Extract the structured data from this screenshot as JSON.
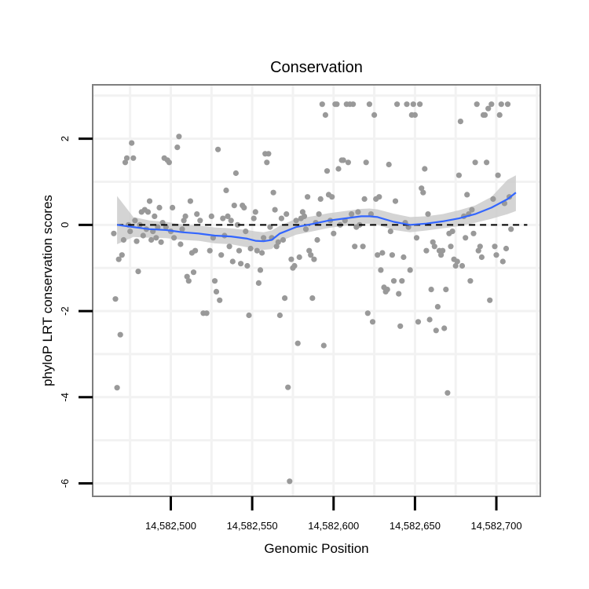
{
  "chart_data": {
    "type": "scatter",
    "title": "Conservation",
    "xlabel": "Genomic Position",
    "ylabel": "phyloP LRT conservation scores",
    "xlim": [
      14582452,
      14582727
    ],
    "ylim": [
      -6.3,
      3.25
    ],
    "x_ticks": [
      14582500,
      14582550,
      14582600,
      14582650,
      14582700
    ],
    "x_tick_labels": [
      "14,582,500",
      "14,582,550",
      "14,582,600",
      "14,582,650",
      "14,582,700"
    ],
    "y_ticks": [
      2,
      0,
      -2,
      -4,
      -6
    ],
    "y_tick_labels": [
      "2",
      "0",
      "-2",
      "-4",
      "-6"
    ],
    "reference_line_y": 0,
    "grid": true,
    "legend": "none",
    "colors": {
      "points": "#999999",
      "smooth_line": "#3366ff",
      "confidence_band": "#cccccc",
      "grid": "#f2f2f2",
      "panel_border": "#7f7f7f",
      "reference_line": "#000000"
    },
    "points": [
      [
        14582465,
        -0.2
      ],
      [
        14582466,
        -1.72
      ],
      [
        14582467,
        -3.78
      ],
      [
        14582468,
        -0.8
      ],
      [
        14582469,
        -2.55
      ],
      [
        14582470,
        -0.7
      ],
      [
        14582471,
        -0.35
      ],
      [
        14582472,
        1.45
      ],
      [
        14582473,
        1.55
      ],
      [
        14582474,
        0.0
      ],
      [
        14582475,
        -0.15
      ],
      [
        14582476,
        1.9
      ],
      [
        14582477,
        1.55
      ],
      [
        14582478,
        0.1
      ],
      [
        14582479,
        -0.38
      ],
      [
        14582480,
        -1.08
      ],
      [
        14582481,
        0.0
      ],
      [
        14582482,
        0.3
      ],
      [
        14582483,
        -0.25
      ],
      [
        14582484,
        0.35
      ],
      [
        14582485,
        -0.1
      ],
      [
        14582486,
        0.3
      ],
      [
        14582487,
        0.55
      ],
      [
        14582488,
        -0.35
      ],
      [
        14582489,
        -0.15
      ],
      [
        14582490,
        0.2
      ],
      [
        14582491,
        -0.3
      ],
      [
        14582492,
        -0.05
      ],
      [
        14582493,
        0.4
      ],
      [
        14582494,
        -0.4
      ],
      [
        14582495,
        0.05
      ],
      [
        14582496,
        1.55
      ],
      [
        14582497,
        -0.05
      ],
      [
        14582498,
        1.5
      ],
      [
        14582499,
        1.45
      ],
      [
        14582500,
        -0.15
      ],
      [
        14582501,
        0.4
      ],
      [
        14582502,
        -0.3
      ],
      [
        14582504,
        1.8
      ],
      [
        14582505,
        2.05
      ],
      [
        14582506,
        -0.45
      ],
      [
        14582507,
        -0.1
      ],
      [
        14582508,
        0.1
      ],
      [
        14582509,
        0.2
      ],
      [
        14582510,
        -1.2
      ],
      [
        14582511,
        -1.3
      ],
      [
        14582512,
        0.55
      ],
      [
        14582513,
        -0.65
      ],
      [
        14582514,
        -1.1
      ],
      [
        14582515,
        -0.6
      ],
      [
        14582516,
        0.25
      ],
      [
        14582518,
        0.1
      ],
      [
        14582520,
        -2.05
      ],
      [
        14582522,
        -2.05
      ],
      [
        14582524,
        -0.6
      ],
      [
        14582525,
        0.2
      ],
      [
        14582526,
        -0.3
      ],
      [
        14582527,
        -1.3
      ],
      [
        14582528,
        -1.55
      ],
      [
        14582529,
        1.75
      ],
      [
        14582530,
        -1.75
      ],
      [
        14582531,
        -0.7
      ],
      [
        14582532,
        0.15
      ],
      [
        14582533,
        -0.25
      ],
      [
        14582534,
        0.8
      ],
      [
        14582535,
        0.2
      ],
      [
        14582536,
        -0.5
      ],
      [
        14582537,
        0.1
      ],
      [
        14582538,
        -0.85
      ],
      [
        14582539,
        0.45
      ],
      [
        14582540,
        1.2
      ],
      [
        14582541,
        0.0
      ],
      [
        14582542,
        -0.6
      ],
      [
        14582543,
        -0.9
      ],
      [
        14582544,
        0.45
      ],
      [
        14582545,
        0.4
      ],
      [
        14582546,
        -0.15
      ],
      [
        14582547,
        -0.95
      ],
      [
        14582548,
        -2.1
      ],
      [
        14582549,
        -0.55
      ],
      [
        14582551,
        0.15
      ],
      [
        14582552,
        0.3
      ],
      [
        14582553,
        -0.6
      ],
      [
        14582554,
        -1.35
      ],
      [
        14582555,
        -1.05
      ],
      [
        14582556,
        -0.65
      ],
      [
        14582557,
        -0.3
      ],
      [
        14582558,
        1.65
      ],
      [
        14582559,
        1.45
      ],
      [
        14582560,
        1.65
      ],
      [
        14582561,
        -0.05
      ],
      [
        14582562,
        -0.3
      ],
      [
        14582563,
        0.75
      ],
      [
        14582564,
        0.35
      ],
      [
        14582565,
        -0.5
      ],
      [
        14582566,
        -0.4
      ],
      [
        14582567,
        -2.1
      ],
      [
        14582568,
        0.15
      ],
      [
        14582569,
        -0.35
      ],
      [
        14582570,
        -1.7
      ],
      [
        14582571,
        0.25
      ],
      [
        14582572,
        -3.77
      ],
      [
        14582573,
        -5.95
      ],
      [
        14582574,
        -0.8
      ],
      [
        14582575,
        -1.0
      ],
      [
        14582576,
        -0.95
      ],
      [
        14582577,
        0.1
      ],
      [
        14582578,
        -2.75
      ],
      [
        14582579,
        -0.75
      ],
      [
        14582580,
        0.15
      ],
      [
        14582581,
        0.3
      ],
      [
        14582582,
        0.2
      ],
      [
        14582583,
        -0.1
      ],
      [
        14582584,
        0.65
      ],
      [
        14582585,
        -0.6
      ],
      [
        14582586,
        -0.7
      ],
      [
        14582587,
        -1.7
      ],
      [
        14582588,
        -0.8
      ],
      [
        14582589,
        0.05
      ],
      [
        14582590,
        -0.35
      ],
      [
        14582591,
        0.25
      ],
      [
        14582592,
        0.6
      ],
      [
        14582593,
        2.8
      ],
      [
        14582594,
        -2.8
      ],
      [
        14582595,
        2.55
      ],
      [
        14582596,
        1.25
      ],
      [
        14582597,
        0.7
      ],
      [
        14582598,
        0.1
      ],
      [
        14582599,
        0.65
      ],
      [
        14582600,
        -0.2
      ],
      [
        14582601,
        2.8
      ],
      [
        14582602,
        2.8
      ],
      [
        14582603,
        1.3
      ],
      [
        14582604,
        0.0
      ],
      [
        14582605,
        1.5
      ],
      [
        14582606,
        1.5
      ],
      [
        14582607,
        0.1
      ],
      [
        14582608,
        2.8
      ],
      [
        14582609,
        1.45
      ],
      [
        14582610,
        2.8
      ],
      [
        14582611,
        0.25
      ],
      [
        14582612,
        2.8
      ],
      [
        14582613,
        -0.5
      ],
      [
        14582614,
        -0.05
      ],
      [
        14582615,
        0.3
      ],
      [
        14582616,
        0.0
      ],
      [
        14582618,
        -0.5
      ],
      [
        14582619,
        0.6
      ],
      [
        14582620,
        1.45
      ],
      [
        14582621,
        -2.05
      ],
      [
        14582622,
        2.8
      ],
      [
        14582623,
        0.25
      ],
      [
        14582624,
        -2.25
      ],
      [
        14582625,
        2.55
      ],
      [
        14582626,
        0.6
      ],
      [
        14582627,
        -0.7
      ],
      [
        14582628,
        0.65
      ],
      [
        14582629,
        -1.05
      ],
      [
        14582630,
        -0.65
      ],
      [
        14582631,
        -1.45
      ],
      [
        14582632,
        -1.55
      ],
      [
        14582633,
        -1.5
      ],
      [
        14582634,
        1.4
      ],
      [
        14582635,
        -0.15
      ],
      [
        14582636,
        -0.7
      ],
      [
        14582637,
        -1.3
      ],
      [
        14582638,
        0.55
      ],
      [
        14582639,
        2.8
      ],
      [
        14582640,
        -1.6
      ],
      [
        14582641,
        -2.35
      ],
      [
        14582642,
        -1.3
      ],
      [
        14582643,
        -0.75
      ],
      [
        14582644,
        0.05
      ],
      [
        14582645,
        2.8
      ],
      [
        14582646,
        -0.05
      ],
      [
        14582647,
        -1.05
      ],
      [
        14582648,
        2.55
      ],
      [
        14582649,
        2.8
      ],
      [
        14582650,
        2.55
      ],
      [
        14582651,
        -0.3
      ],
      [
        14582652,
        -2.25
      ],
      [
        14582653,
        2.8
      ],
      [
        14582654,
        0.85
      ],
      [
        14582655,
        0.75
      ],
      [
        14582656,
        1.3
      ],
      [
        14582657,
        -0.6
      ],
      [
        14582658,
        0.25
      ],
      [
        14582659,
        -2.2
      ],
      [
        14582660,
        -1.5
      ],
      [
        14582661,
        -0.4
      ],
      [
        14582662,
        -0.5
      ],
      [
        14582663,
        -2.45
      ],
      [
        14582664,
        -1.9
      ],
      [
        14582665,
        -0.6
      ],
      [
        14582666,
        -0.7
      ],
      [
        14582667,
        -0.6
      ],
      [
        14582668,
        -2.4
      ],
      [
        14582669,
        -1.5
      ],
      [
        14582670,
        -3.9
      ],
      [
        14582671,
        -0.2
      ],
      [
        14582672,
        -0.5
      ],
      [
        14582673,
        -0.15
      ],
      [
        14582674,
        -0.8
      ],
      [
        14582675,
        -0.95
      ],
      [
        14582676,
        -0.85
      ],
      [
        14582677,
        1.15
      ],
      [
        14582678,
        2.4
      ],
      [
        14582679,
        -0.95
      ],
      [
        14582680,
        0.2
      ],
      [
        14582681,
        -0.3
      ],
      [
        14582682,
        0.7
      ],
      [
        14582683,
        0.25
      ],
      [
        14582684,
        -1.3
      ],
      [
        14582685,
        0.35
      ],
      [
        14582686,
        -0.2
      ],
      [
        14582687,
        1.45
      ],
      [
        14582688,
        2.8
      ],
      [
        14582689,
        -0.6
      ],
      [
        14582690,
        -0.5
      ],
      [
        14582691,
        -0.75
      ],
      [
        14582692,
        2.55
      ],
      [
        14582693,
        2.55
      ],
      [
        14582694,
        1.45
      ],
      [
        14582695,
        2.7
      ],
      [
        14582696,
        -1.75
      ],
      [
        14582697,
        2.8
      ],
      [
        14582698,
        0.6
      ],
      [
        14582699,
        -0.5
      ],
      [
        14582700,
        -0.7
      ],
      [
        14582701,
        1.15
      ],
      [
        14582702,
        2.55
      ],
      [
        14582703,
        2.8
      ],
      [
        14582704,
        -0.85
      ],
      [
        14582705,
        0.5
      ],
      [
        14582706,
        -0.55
      ],
      [
        14582707,
        2.8
      ],
      [
        14582708,
        0.65
      ],
      [
        14582709,
        -0.1
      ]
    ],
    "smooth": {
      "x": [
        14582467,
        14582477,
        14582487,
        14582497,
        14582507,
        14582517,
        14582527,
        14582537,
        14582547,
        14582552,
        14582557,
        14582562,
        14582567,
        14582577,
        14582587,
        14582597,
        14582607,
        14582617,
        14582622,
        14582627,
        14582637,
        14582647,
        14582657,
        14582667,
        14582677,
        14582687,
        14582697,
        14582707,
        14582712
      ],
      "y": [
        0.0,
        -0.05,
        -0.1,
        -0.12,
        -0.17,
        -0.2,
        -0.25,
        -0.27,
        -0.32,
        -0.37,
        -0.38,
        -0.35,
        -0.2,
        -0.05,
        0.02,
        0.1,
        0.15,
        0.2,
        0.2,
        0.18,
        0.07,
        0.0,
        0.03,
        0.08,
        0.15,
        0.25,
        0.4,
        0.6,
        0.75
      ],
      "lower": [
        -0.45,
        -0.28,
        -0.3,
        -0.31,
        -0.35,
        -0.37,
        -0.43,
        -0.45,
        -0.52,
        -0.58,
        -0.58,
        -0.56,
        -0.38,
        -0.23,
        -0.15,
        -0.07,
        -0.02,
        0.03,
        0.03,
        0.0,
        -0.12,
        -0.17,
        -0.13,
        -0.08,
        -0.03,
        0.05,
        0.14,
        0.25,
        0.32
      ],
      "upper": [
        0.67,
        0.18,
        0.1,
        0.07,
        0.01,
        -0.02,
        -0.06,
        -0.08,
        -0.12,
        -0.15,
        -0.17,
        -0.13,
        -0.02,
        0.14,
        0.2,
        0.27,
        0.32,
        0.37,
        0.38,
        0.36,
        0.26,
        0.18,
        0.2,
        0.25,
        0.34,
        0.45,
        0.65,
        1.05,
        1.15
      ]
    }
  }
}
